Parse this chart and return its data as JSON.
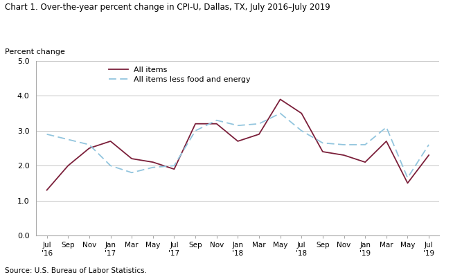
{
  "title": "Chart 1. Over-the-year percent change in CPI-U, Dallas, TX, July 2016–July 2019",
  "ylabel": "Percent change",
  "source": "Source: U.S. Bureau of Labor Statistics.",
  "ylim": [
    0.0,
    5.0
  ],
  "yticks": [
    0.0,
    1.0,
    2.0,
    3.0,
    4.0,
    5.0
  ],
  "tick_labels_line1": [
    "Jul",
    "Sep",
    "Nov",
    "Jan",
    "Mar",
    "May",
    "Jul",
    "Sep",
    "Nov",
    "Jan",
    "Mar",
    "May",
    "Jul",
    "Sep",
    "Nov",
    "Jan",
    "Mar",
    "May",
    "Jul"
  ],
  "tick_labels_line2": [
    "'16",
    "",
    "",
    "'17",
    "",
    "",
    "'17",
    "",
    "",
    "'18",
    "",
    "",
    "'18",
    "",
    "",
    "'19",
    "",
    "",
    "'19"
  ],
  "all_items": [
    1.3,
    2.0,
    2.5,
    2.7,
    2.2,
    2.1,
    1.9,
    3.2,
    3.2,
    2.7,
    2.9,
    3.9,
    3.5,
    2.4,
    2.3,
    2.1,
    2.7,
    1.5,
    2.3
  ],
  "core_items": [
    2.9,
    2.75,
    2.6,
    2.0,
    1.8,
    1.95,
    2.0,
    3.0,
    3.3,
    3.15,
    3.2,
    3.5,
    3.0,
    2.65,
    2.6,
    2.6,
    3.1,
    1.65,
    2.6
  ],
  "all_items_color": "#7b1f3a",
  "core_items_color": "#92c5de",
  "background_color": "#ffffff",
  "grid_color": "#aaaaaa",
  "figsize": [
    6.54,
    4.0
  ],
  "dpi": 100
}
